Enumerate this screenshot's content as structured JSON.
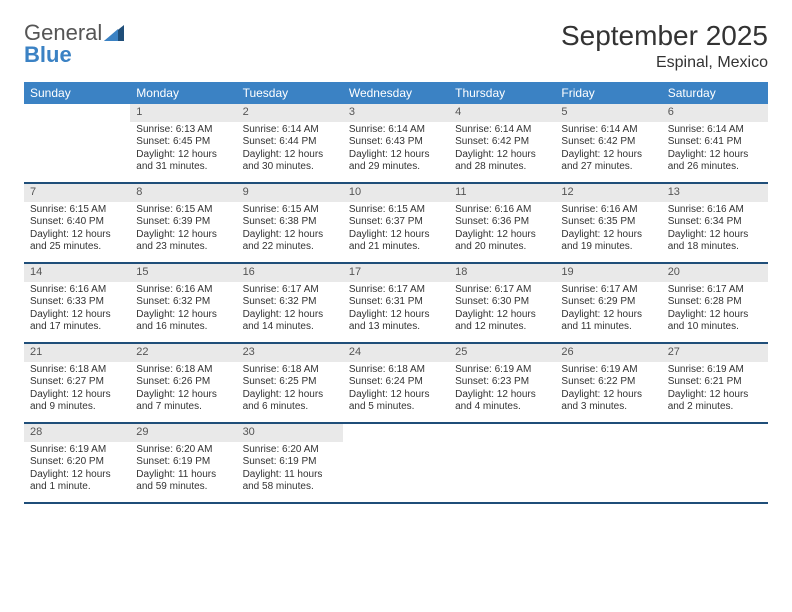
{
  "brand": {
    "general": "General",
    "blue": "Blue"
  },
  "title": "September 2025",
  "location": "Espinal, Mexico",
  "colors": {
    "header_bar": "#3b82c4",
    "week_divider": "#1f4e79",
    "daynum_bg": "#e9e9e9",
    "text": "#333333",
    "background": "#ffffff"
  },
  "day_headers": [
    "Sunday",
    "Monday",
    "Tuesday",
    "Wednesday",
    "Thursday",
    "Friday",
    "Saturday"
  ],
  "weeks": [
    [
      {
        "empty": true
      },
      {
        "num": "1",
        "sunrise": "Sunrise: 6:13 AM",
        "sunset": "Sunset: 6:45 PM",
        "daylight1": "Daylight: 12 hours",
        "daylight2": "and 31 minutes."
      },
      {
        "num": "2",
        "sunrise": "Sunrise: 6:14 AM",
        "sunset": "Sunset: 6:44 PM",
        "daylight1": "Daylight: 12 hours",
        "daylight2": "and 30 minutes."
      },
      {
        "num": "3",
        "sunrise": "Sunrise: 6:14 AM",
        "sunset": "Sunset: 6:43 PM",
        "daylight1": "Daylight: 12 hours",
        "daylight2": "and 29 minutes."
      },
      {
        "num": "4",
        "sunrise": "Sunrise: 6:14 AM",
        "sunset": "Sunset: 6:42 PM",
        "daylight1": "Daylight: 12 hours",
        "daylight2": "and 28 minutes."
      },
      {
        "num": "5",
        "sunrise": "Sunrise: 6:14 AM",
        "sunset": "Sunset: 6:42 PM",
        "daylight1": "Daylight: 12 hours",
        "daylight2": "and 27 minutes."
      },
      {
        "num": "6",
        "sunrise": "Sunrise: 6:14 AM",
        "sunset": "Sunset: 6:41 PM",
        "daylight1": "Daylight: 12 hours",
        "daylight2": "and 26 minutes."
      }
    ],
    [
      {
        "num": "7",
        "sunrise": "Sunrise: 6:15 AM",
        "sunset": "Sunset: 6:40 PM",
        "daylight1": "Daylight: 12 hours",
        "daylight2": "and 25 minutes."
      },
      {
        "num": "8",
        "sunrise": "Sunrise: 6:15 AM",
        "sunset": "Sunset: 6:39 PM",
        "daylight1": "Daylight: 12 hours",
        "daylight2": "and 23 minutes."
      },
      {
        "num": "9",
        "sunrise": "Sunrise: 6:15 AM",
        "sunset": "Sunset: 6:38 PM",
        "daylight1": "Daylight: 12 hours",
        "daylight2": "and 22 minutes."
      },
      {
        "num": "10",
        "sunrise": "Sunrise: 6:15 AM",
        "sunset": "Sunset: 6:37 PM",
        "daylight1": "Daylight: 12 hours",
        "daylight2": "and 21 minutes."
      },
      {
        "num": "11",
        "sunrise": "Sunrise: 6:16 AM",
        "sunset": "Sunset: 6:36 PM",
        "daylight1": "Daylight: 12 hours",
        "daylight2": "and 20 minutes."
      },
      {
        "num": "12",
        "sunrise": "Sunrise: 6:16 AM",
        "sunset": "Sunset: 6:35 PM",
        "daylight1": "Daylight: 12 hours",
        "daylight2": "and 19 minutes."
      },
      {
        "num": "13",
        "sunrise": "Sunrise: 6:16 AM",
        "sunset": "Sunset: 6:34 PM",
        "daylight1": "Daylight: 12 hours",
        "daylight2": "and 18 minutes."
      }
    ],
    [
      {
        "num": "14",
        "sunrise": "Sunrise: 6:16 AM",
        "sunset": "Sunset: 6:33 PM",
        "daylight1": "Daylight: 12 hours",
        "daylight2": "and 17 minutes."
      },
      {
        "num": "15",
        "sunrise": "Sunrise: 6:16 AM",
        "sunset": "Sunset: 6:32 PM",
        "daylight1": "Daylight: 12 hours",
        "daylight2": "and 16 minutes."
      },
      {
        "num": "16",
        "sunrise": "Sunrise: 6:17 AM",
        "sunset": "Sunset: 6:32 PM",
        "daylight1": "Daylight: 12 hours",
        "daylight2": "and 14 minutes."
      },
      {
        "num": "17",
        "sunrise": "Sunrise: 6:17 AM",
        "sunset": "Sunset: 6:31 PM",
        "daylight1": "Daylight: 12 hours",
        "daylight2": "and 13 minutes."
      },
      {
        "num": "18",
        "sunrise": "Sunrise: 6:17 AM",
        "sunset": "Sunset: 6:30 PM",
        "daylight1": "Daylight: 12 hours",
        "daylight2": "and 12 minutes."
      },
      {
        "num": "19",
        "sunrise": "Sunrise: 6:17 AM",
        "sunset": "Sunset: 6:29 PM",
        "daylight1": "Daylight: 12 hours",
        "daylight2": "and 11 minutes."
      },
      {
        "num": "20",
        "sunrise": "Sunrise: 6:17 AM",
        "sunset": "Sunset: 6:28 PM",
        "daylight1": "Daylight: 12 hours",
        "daylight2": "and 10 minutes."
      }
    ],
    [
      {
        "num": "21",
        "sunrise": "Sunrise: 6:18 AM",
        "sunset": "Sunset: 6:27 PM",
        "daylight1": "Daylight: 12 hours",
        "daylight2": "and 9 minutes."
      },
      {
        "num": "22",
        "sunrise": "Sunrise: 6:18 AM",
        "sunset": "Sunset: 6:26 PM",
        "daylight1": "Daylight: 12 hours",
        "daylight2": "and 7 minutes."
      },
      {
        "num": "23",
        "sunrise": "Sunrise: 6:18 AM",
        "sunset": "Sunset: 6:25 PM",
        "daylight1": "Daylight: 12 hours",
        "daylight2": "and 6 minutes."
      },
      {
        "num": "24",
        "sunrise": "Sunrise: 6:18 AM",
        "sunset": "Sunset: 6:24 PM",
        "daylight1": "Daylight: 12 hours",
        "daylight2": "and 5 minutes."
      },
      {
        "num": "25",
        "sunrise": "Sunrise: 6:19 AM",
        "sunset": "Sunset: 6:23 PM",
        "daylight1": "Daylight: 12 hours",
        "daylight2": "and 4 minutes."
      },
      {
        "num": "26",
        "sunrise": "Sunrise: 6:19 AM",
        "sunset": "Sunset: 6:22 PM",
        "daylight1": "Daylight: 12 hours",
        "daylight2": "and 3 minutes."
      },
      {
        "num": "27",
        "sunrise": "Sunrise: 6:19 AM",
        "sunset": "Sunset: 6:21 PM",
        "daylight1": "Daylight: 12 hours",
        "daylight2": "and 2 minutes."
      }
    ],
    [
      {
        "num": "28",
        "sunrise": "Sunrise: 6:19 AM",
        "sunset": "Sunset: 6:20 PM",
        "daylight1": "Daylight: 12 hours",
        "daylight2": "and 1 minute."
      },
      {
        "num": "29",
        "sunrise": "Sunrise: 6:20 AM",
        "sunset": "Sunset: 6:19 PM",
        "daylight1": "Daylight: 11 hours",
        "daylight2": "and 59 minutes."
      },
      {
        "num": "30",
        "sunrise": "Sunrise: 6:20 AM",
        "sunset": "Sunset: 6:19 PM",
        "daylight1": "Daylight: 11 hours",
        "daylight2": "and 58 minutes."
      },
      {
        "empty": true
      },
      {
        "empty": true
      },
      {
        "empty": true
      },
      {
        "empty": true
      }
    ]
  ]
}
